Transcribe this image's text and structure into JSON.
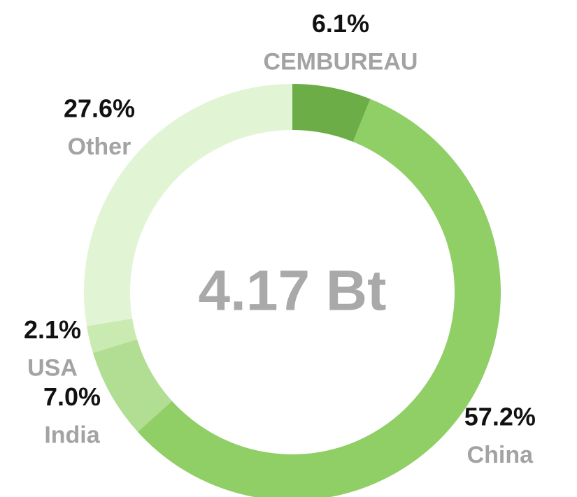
{
  "chart_data": {
    "type": "pie",
    "donut": true,
    "center_label": "4.17 Bt",
    "categories": [
      "CEMBUREAU",
      "China",
      "India",
      "USA",
      "Other"
    ],
    "values": [
      6.1,
      57.2,
      7.0,
      2.1,
      27.6
    ],
    "value_labels": [
      "6.1%",
      "57.2%",
      "7.0%",
      "2.1%",
      "27.6%"
    ],
    "colors": [
      "#6cad47",
      "#90ce66",
      "#b1de92",
      "#c9ebb2",
      "#e1f5d4"
    ]
  }
}
